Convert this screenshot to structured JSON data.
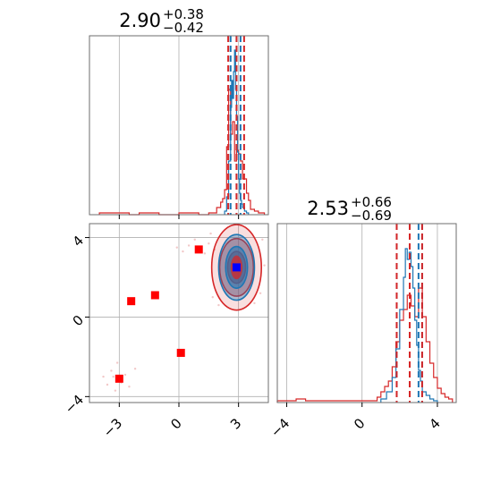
{
  "chart_data": {
    "type": "scatter",
    "colors": {
      "red": "#d62728",
      "blue": "#1f77b4",
      "marker_red": "#ff0000",
      "marker_blue": "#0000ff",
      "grid": "#b0b0b0"
    },
    "grid": true,
    "panels": [
      {
        "id": "hist_x",
        "type": "histogram",
        "title": {
          "value": "2.90",
          "upper": "+0.38",
          "lower": "−0.42"
        },
        "xlim": [
          -4.5,
          4.5
        ],
        "ylim": [
          0,
          1.0
        ],
        "quantiles": {
          "red": [
            2.48,
            2.9,
            3.28
          ],
          "blue": [
            2.6,
            2.9,
            3.1
          ]
        },
        "series": [
          {
            "name": "red",
            "color": "#d62728",
            "bin_edges": [
              -4.0,
              -3.5,
              -3.0,
              -2.5,
              -2.0,
              -1.5,
              -1.0,
              -0.5,
              0.0,
              0.5,
              1.0,
              1.5,
              1.7,
              1.9,
              2.1,
              2.2,
              2.3,
              2.4,
              2.5,
              2.6,
              2.7,
              2.8,
              2.9,
              3.0,
              3.1,
              3.2,
              3.3,
              3.4,
              3.5,
              3.6,
              3.8,
              4.0,
              4.3
            ],
            "counts": [
              0.01,
              0.01,
              0.01,
              0,
              0.01,
              0.01,
              0,
              0,
              0.01,
              0.01,
              0,
              0.01,
              0.01,
              0.04,
              0.07,
              0.09,
              0.14,
              0.38,
              0.7,
              0.45,
              0.52,
              0.3,
              0.36,
              0.34,
              0.3,
              0.2,
              0.2,
              0.12,
              0.08,
              0.03,
              0.02,
              0.01
            ]
          },
          {
            "name": "blue",
            "color": "#1f77b4",
            "bin_edges": [
              2.3,
              2.4,
              2.5,
              2.6,
              2.65,
              2.7,
              2.75,
              2.8,
              2.85,
              2.9,
              2.95,
              3.0,
              3.05,
              3.1,
              3.15,
              3.2,
              3.3,
              3.4,
              3.5
            ],
            "counts": [
              0.02,
              0.1,
              0.3,
              0.6,
              0.75,
              0.65,
              0.8,
              0.92,
              0.7,
              0.55,
              0.35,
              0.2,
              0.12,
              0.08,
              0.06,
              0.04,
              0.02,
              0.01
            ]
          }
        ]
      },
      {
        "id": "hist_y",
        "type": "histogram",
        "title": {
          "value": "2.53",
          "upper": "+0.66",
          "lower": "−0.69"
        },
        "xlim": [
          -4.5,
          5.0
        ],
        "xticks": [
          -4,
          0,
          4
        ],
        "xticklabels": [
          "−4",
          "0",
          "4"
        ],
        "ylim": [
          0,
          1.0
        ],
        "quantiles": {
          "red": [
            1.84,
            2.53,
            3.19
          ],
          "blue": [
            1.84,
            3.0,
            3.19
          ]
        },
        "series": [
          {
            "name": "red",
            "color": "#d62728",
            "bin_edges": [
              -4.5,
              -4.0,
              -3.5,
              -3.0,
              -2.5,
              -2.0,
              -1.0,
              0.0,
              0.5,
              0.8,
              1.0,
              1.2,
              1.4,
              1.6,
              1.8,
              2.0,
              2.2,
              2.4,
              2.6,
              2.8,
              3.0,
              3.2,
              3.4,
              3.6,
              3.8,
              4.0,
              4.2,
              4.4,
              4.6,
              4.8
            ],
            "counts": [
              0.01,
              0.01,
              0.02,
              0.01,
              0.01,
              0.01,
              0.01,
              0.01,
              0.01,
              0.03,
              0.06,
              0.09,
              0.12,
              0.2,
              0.34,
              0.46,
              0.52,
              0.6,
              0.54,
              0.48,
              0.64,
              0.48,
              0.34,
              0.22,
              0.14,
              0.08,
              0.05,
              0.03,
              0.02
            ]
          },
          {
            "name": "blue",
            "color": "#1f77b4",
            "bin_edges": [
              1.0,
              1.3,
              1.6,
              1.8,
              2.0,
              2.2,
              2.3,
              2.4,
              2.5,
              2.6,
              2.7,
              2.8,
              2.9,
              3.0,
              3.1,
              3.2,
              3.4,
              3.6,
              3.8,
              4.0
            ],
            "counts": [
              0.02,
              0.06,
              0.14,
              0.3,
              0.52,
              0.7,
              0.86,
              0.8,
              0.84,
              0.76,
              0.64,
              0.46,
              0.32,
              0.18,
              0.12,
              0.06,
              0.04,
              0.02,
              0.01
            ]
          }
        ]
      },
      {
        "id": "scatter_xy",
        "type": "scatter",
        "xlim": [
          -4.5,
          4.5
        ],
        "ylim": [
          -4.3,
          4.7
        ],
        "xticks": [
          -3,
          0,
          3
        ],
        "xticklabels": [
          "−3",
          "0",
          "3"
        ],
        "yticks": [
          -4,
          0,
          4
        ],
        "yticklabels": [
          "−4",
          "0",
          "4"
        ],
        "red_markers": [
          {
            "x": 1.0,
            "y": 3.4
          },
          {
            "x": -2.4,
            "y": 0.8
          },
          {
            "x": -1.2,
            "y": 1.1
          },
          {
            "x": 0.1,
            "y": -1.8
          },
          {
            "x": -3.0,
            "y": -3.1
          }
        ],
        "blue_marker": {
          "x": 2.9,
          "y": 2.5
        },
        "contours": {
          "center": {
            "x": 2.9,
            "y": 2.5
          },
          "red_levels": [
            {
              "rx": 1.25,
              "ry": 2.15,
              "fill_opacity": 0.15
            },
            {
              "rx": 0.85,
              "ry": 1.45,
              "fill_opacity": 0.35
            },
            {
              "rx": 0.45,
              "ry": 0.8,
              "fill_opacity": 0.6
            }
          ],
          "blue_levels": [
            {
              "rx": 0.9,
              "ry": 1.65,
              "fill_opacity": 0.35
            },
            {
              "rx": 0.55,
              "ry": 1.05,
              "fill_opacity": 0.55
            }
          ]
        },
        "faint_points": [
          {
            "x": -3.4,
            "y": -2.7
          },
          {
            "x": -3.1,
            "y": -2.3
          },
          {
            "x": -2.7,
            "y": -2.9
          },
          {
            "x": -3.6,
            "y": -3.4
          },
          {
            "x": -2.5,
            "y": -3.5
          },
          {
            "x": -3.2,
            "y": -3.7
          },
          {
            "x": -2.2,
            "y": -2.6
          },
          {
            "x": -3.8,
            "y": -3.0
          },
          {
            "x": -2.9,
            "y": -3.3
          },
          {
            "x": -3.3,
            "y": -3.0
          },
          {
            "x": 0.5,
            "y": 3.6
          },
          {
            "x": 0.8,
            "y": 3.9
          },
          {
            "x": 1.3,
            "y": 3.2
          },
          {
            "x": 0.2,
            "y": 3.3
          },
          {
            "x": 1.5,
            "y": 3.7
          },
          {
            "x": 1.8,
            "y": 3.4
          },
          {
            "x": 4.1,
            "y": 1.2
          },
          {
            "x": 4.2,
            "y": 3.9
          },
          {
            "x": 1.7,
            "y": 1.0
          },
          {
            "x": 1.6,
            "y": 4.2
          },
          {
            "x": 4.3,
            "y": 2.6
          },
          {
            "x": 3.8,
            "y": 0.7
          },
          {
            "x": 2.0,
            "y": 0.6
          },
          {
            "x": -0.1,
            "y": 3.5
          }
        ]
      }
    ]
  }
}
